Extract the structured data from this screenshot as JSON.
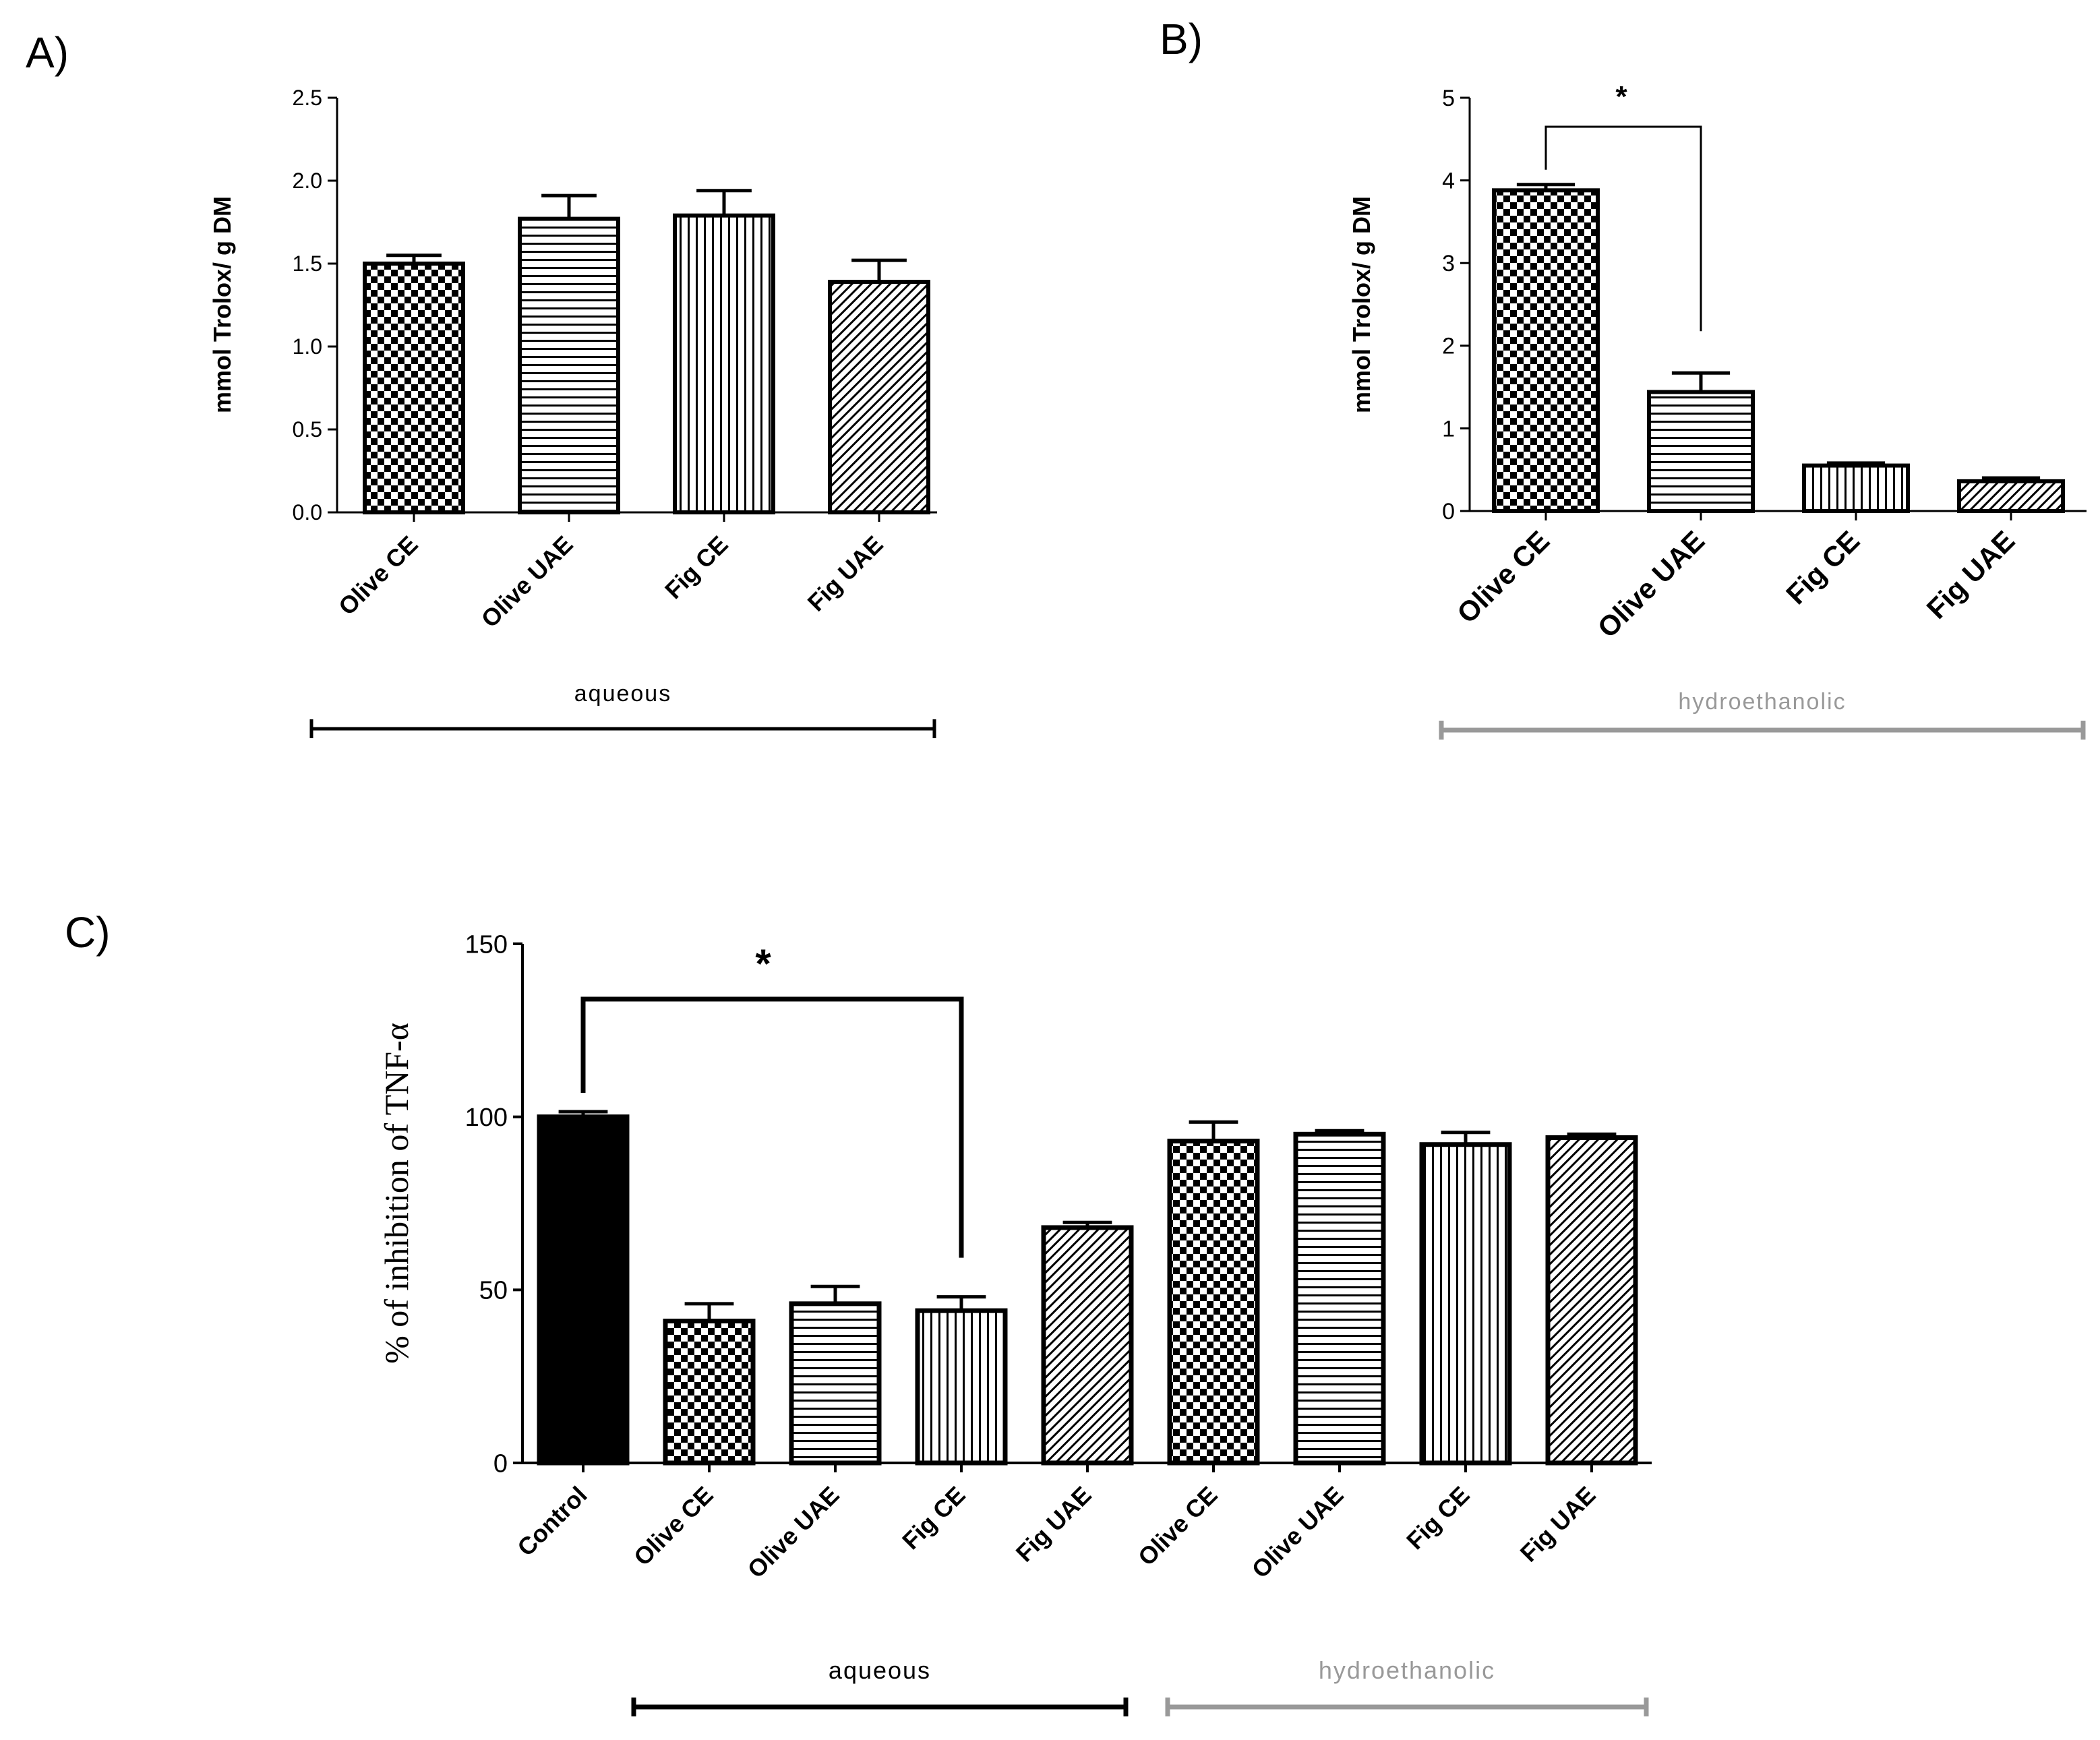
{
  "colors": {
    "ink": "#000000",
    "hydro": "#999999",
    "aqueous": "#000000",
    "control_fill": "#000000"
  },
  "chart_data": [
    {
      "id": "A",
      "panel_label": "A)",
      "type": "bar",
      "categories": [
        "Olive CE",
        "Olive UAE",
        "Fig CE",
        "Fig UAE"
      ],
      "values": [
        1.5,
        1.77,
        1.79,
        1.39
      ],
      "errors": [
        0.05,
        0.14,
        0.15,
        0.13
      ],
      "patterns": [
        "checker",
        "hlines",
        "vlines",
        "diag"
      ],
      "ylabel": "mmol Trolox/ g DM",
      "ylim": [
        0,
        2.5
      ],
      "yticks": [
        0.0,
        0.5,
        1.0,
        1.5,
        2.0,
        2.5
      ],
      "ytick_labels": [
        "0.0",
        "0.5",
        "1.0",
        "1.5",
        "2.0",
        "2.5"
      ],
      "groups": [
        {
          "label": "aqueous",
          "style": "aqueous"
        }
      ]
    },
    {
      "id": "B",
      "panel_label": "B)",
      "type": "bar",
      "categories": [
        "Olive CE",
        "Olive UAE",
        "Fig CE",
        "Fig UAE"
      ],
      "values": [
        3.88,
        1.44,
        0.55,
        0.36
      ],
      "errors": [
        0.07,
        0.23,
        0.03,
        0.04
      ],
      "patterns": [
        "checker",
        "hlines",
        "vlines",
        "diag"
      ],
      "ylabel": "mmol Trolox/ g DM",
      "ylim": [
        0,
        5
      ],
      "yticks": [
        0,
        1,
        2,
        3,
        4,
        5
      ],
      "ytick_labels": [
        "0",
        "1",
        "2",
        "3",
        "4",
        "5"
      ],
      "significance": [
        {
          "from": 0,
          "to": 1,
          "label": "*"
        }
      ],
      "groups": [
        {
          "label": "hydroethanolic",
          "style": "hydro"
        }
      ]
    },
    {
      "id": "C",
      "panel_label": "C)",
      "type": "bar",
      "categories": [
        "Control",
        "Olive CE",
        "Olive UAE",
        "Fig CE",
        "Fig UAE",
        "Olive CE",
        "Olive UAE",
        "Fig CE",
        "Fig UAE"
      ],
      "values": [
        100,
        41,
        46,
        44,
        68,
        93,
        95,
        92,
        94
      ],
      "errors": [
        1.5,
        5,
        5,
        4,
        1.5,
        5.5,
        1,
        3.5,
        1
      ],
      "patterns": [
        "solid",
        "checker",
        "hlines",
        "vlines",
        "diag",
        "checker",
        "hlines",
        "vlines",
        "diag"
      ],
      "ylabel": "% of inhibition of TNF-α",
      "ylim": [
        0,
        150
      ],
      "yticks": [
        0,
        50,
        100,
        150
      ],
      "ytick_labels": [
        "0",
        "50",
        "100",
        "150"
      ],
      "significance": [
        {
          "from": 0,
          "to": 3,
          "label": "*"
        }
      ],
      "groups": [
        {
          "label": "aqueous",
          "style": "aqueous",
          "from": 1,
          "to": 4
        },
        {
          "label": "hydroethanolic",
          "style": "hydro",
          "from": 5,
          "to": 8
        }
      ]
    }
  ]
}
